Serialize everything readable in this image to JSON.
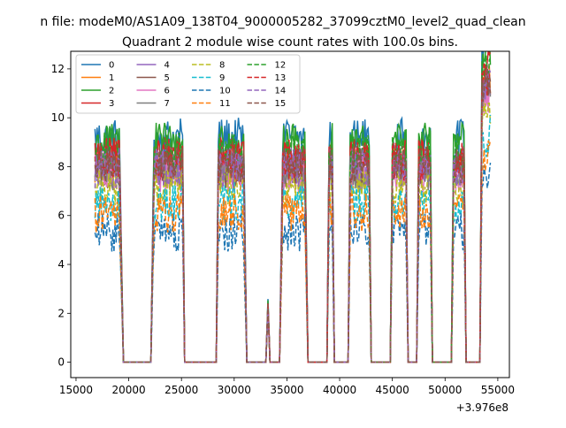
{
  "figure": {
    "suptitle": "n file: modeM0/AS1A09_138T04_9000005282_37099cztM0_level2_quad_clean",
    "title": "Quadrant 2 module wise count rates with 100.0s bins.",
    "offset_label": "+3.976e8"
  },
  "chart_data": {
    "type": "line",
    "title": "Quadrant 2 module wise count rates with 100.0s bins.",
    "xlabel": "",
    "ylabel": "",
    "x_offset": 397600000,
    "xlim": [
      14500,
      56100
    ],
    "ylim": [
      -0.63,
      12.72
    ],
    "xticks": [
      15000,
      20000,
      25000,
      30000,
      35000,
      40000,
      45000,
      50000,
      55000
    ],
    "xtick_labels": [
      "15000",
      "20000",
      "25000",
      "30000",
      "35000",
      "40000",
      "45000",
      "50000",
      "55000"
    ],
    "yticks": [
      0,
      2,
      4,
      6,
      8,
      10,
      12
    ],
    "ytick_labels": [
      "0",
      "2",
      "4",
      "6",
      "8",
      "10",
      "12"
    ],
    "grid": false,
    "legend_position": "top-left",
    "legend_columns": 4,
    "x_start": 16800,
    "bin": 100,
    "segments": [
      {
        "start": 16800,
        "end": 19100,
        "mode": "on"
      },
      {
        "start": 19100,
        "end": 19500,
        "mode": "fall"
      },
      {
        "start": 19500,
        "end": 22100,
        "mode": "zero"
      },
      {
        "start": 22100,
        "end": 22400,
        "mode": "rise"
      },
      {
        "start": 22400,
        "end": 25100,
        "mode": "on"
      },
      {
        "start": 25100,
        "end": 25300,
        "mode": "fall"
      },
      {
        "start": 25300,
        "end": 28300,
        "mode": "zero"
      },
      {
        "start": 28300,
        "end": 28500,
        "mode": "rise"
      },
      {
        "start": 28500,
        "end": 30900,
        "mode": "on"
      },
      {
        "start": 30900,
        "end": 31200,
        "mode": "fall"
      },
      {
        "start": 31200,
        "end": 33000,
        "mode": "zero"
      },
      {
        "start": 33000,
        "end": 33400,
        "mode": "spike"
      },
      {
        "start": 33400,
        "end": 34300,
        "mode": "zero"
      },
      {
        "start": 34300,
        "end": 34600,
        "mode": "rise"
      },
      {
        "start": 34600,
        "end": 36700,
        "mode": "on"
      },
      {
        "start": 36700,
        "end": 37000,
        "mode": "fall"
      },
      {
        "start": 37000,
        "end": 38800,
        "mode": "zero"
      },
      {
        "start": 38800,
        "end": 39000,
        "mode": "rise"
      },
      {
        "start": 39000,
        "end": 39300,
        "mode": "on"
      },
      {
        "start": 39300,
        "end": 39500,
        "mode": "fall"
      },
      {
        "start": 39500,
        "end": 40800,
        "mode": "zero"
      },
      {
        "start": 40800,
        "end": 41000,
        "mode": "rise"
      },
      {
        "start": 41000,
        "end": 42800,
        "mode": "on"
      },
      {
        "start": 42800,
        "end": 43000,
        "mode": "fall"
      },
      {
        "start": 43000,
        "end": 44800,
        "mode": "zero"
      },
      {
        "start": 44800,
        "end": 45000,
        "mode": "rise"
      },
      {
        "start": 45000,
        "end": 46300,
        "mode": "on"
      },
      {
        "start": 46300,
        "end": 46500,
        "mode": "fall"
      },
      {
        "start": 46500,
        "end": 47300,
        "mode": "zero"
      },
      {
        "start": 47300,
        "end": 47500,
        "mode": "rise"
      },
      {
        "start": 47500,
        "end": 48600,
        "mode": "on"
      },
      {
        "start": 48600,
        "end": 48800,
        "mode": "fall"
      },
      {
        "start": 48800,
        "end": 50600,
        "mode": "zero"
      },
      {
        "start": 50600,
        "end": 50800,
        "mode": "rise"
      },
      {
        "start": 50800,
        "end": 51800,
        "mode": "on"
      },
      {
        "start": 51800,
        "end": 52000,
        "mode": "fall"
      },
      {
        "start": 52000,
        "end": 53300,
        "mode": "zero"
      },
      {
        "start": 53300,
        "end": 53500,
        "mode": "rise"
      },
      {
        "start": 53500,
        "end": 54300,
        "mode": "on"
      }
    ],
    "series": [
      {
        "name": "0",
        "level": 9.2,
        "color": "#1f77b4",
        "dash": "solid"
      },
      {
        "name": "1",
        "level": 8.0,
        "color": "#ff7f0e",
        "dash": "solid"
      },
      {
        "name": "2",
        "level": 9.0,
        "color": "#2ca02c",
        "dash": "solid"
      },
      {
        "name": "3",
        "level": 8.4,
        "color": "#d62728",
        "dash": "solid"
      },
      {
        "name": "4",
        "level": 8.0,
        "color": "#9467bd",
        "dash": "solid"
      },
      {
        "name": "5",
        "level": 7.9,
        "color": "#8c564b",
        "dash": "solid"
      },
      {
        "name": "6",
        "level": 7.7,
        "color": "#e377c2",
        "dash": "solid"
      },
      {
        "name": "7",
        "level": 7.8,
        "color": "#7f7f7f",
        "dash": "solid"
      },
      {
        "name": "8",
        "level": 7.2,
        "color": "#bcbd22",
        "dash": "dashed"
      },
      {
        "name": "9",
        "level": 6.5,
        "color": "#17becf",
        "dash": "dashed"
      },
      {
        "name": "10",
        "level": 5.3,
        "color": "#1f77b4",
        "dash": "dashed"
      },
      {
        "name": "11",
        "level": 6.1,
        "color": "#ff7f0e",
        "dash": "dashed"
      },
      {
        "name": "12",
        "level": 8.6,
        "color": "#2ca02c",
        "dash": "dashed"
      },
      {
        "name": "13",
        "level": 8.2,
        "color": "#d62728",
        "dash": "dashed"
      },
      {
        "name": "14",
        "level": 7.9,
        "color": "#9467bd",
        "dash": "dashed"
      },
      {
        "name": "15",
        "level": 8.1,
        "color": "#8c564b",
        "dash": "dashed"
      }
    ]
  }
}
